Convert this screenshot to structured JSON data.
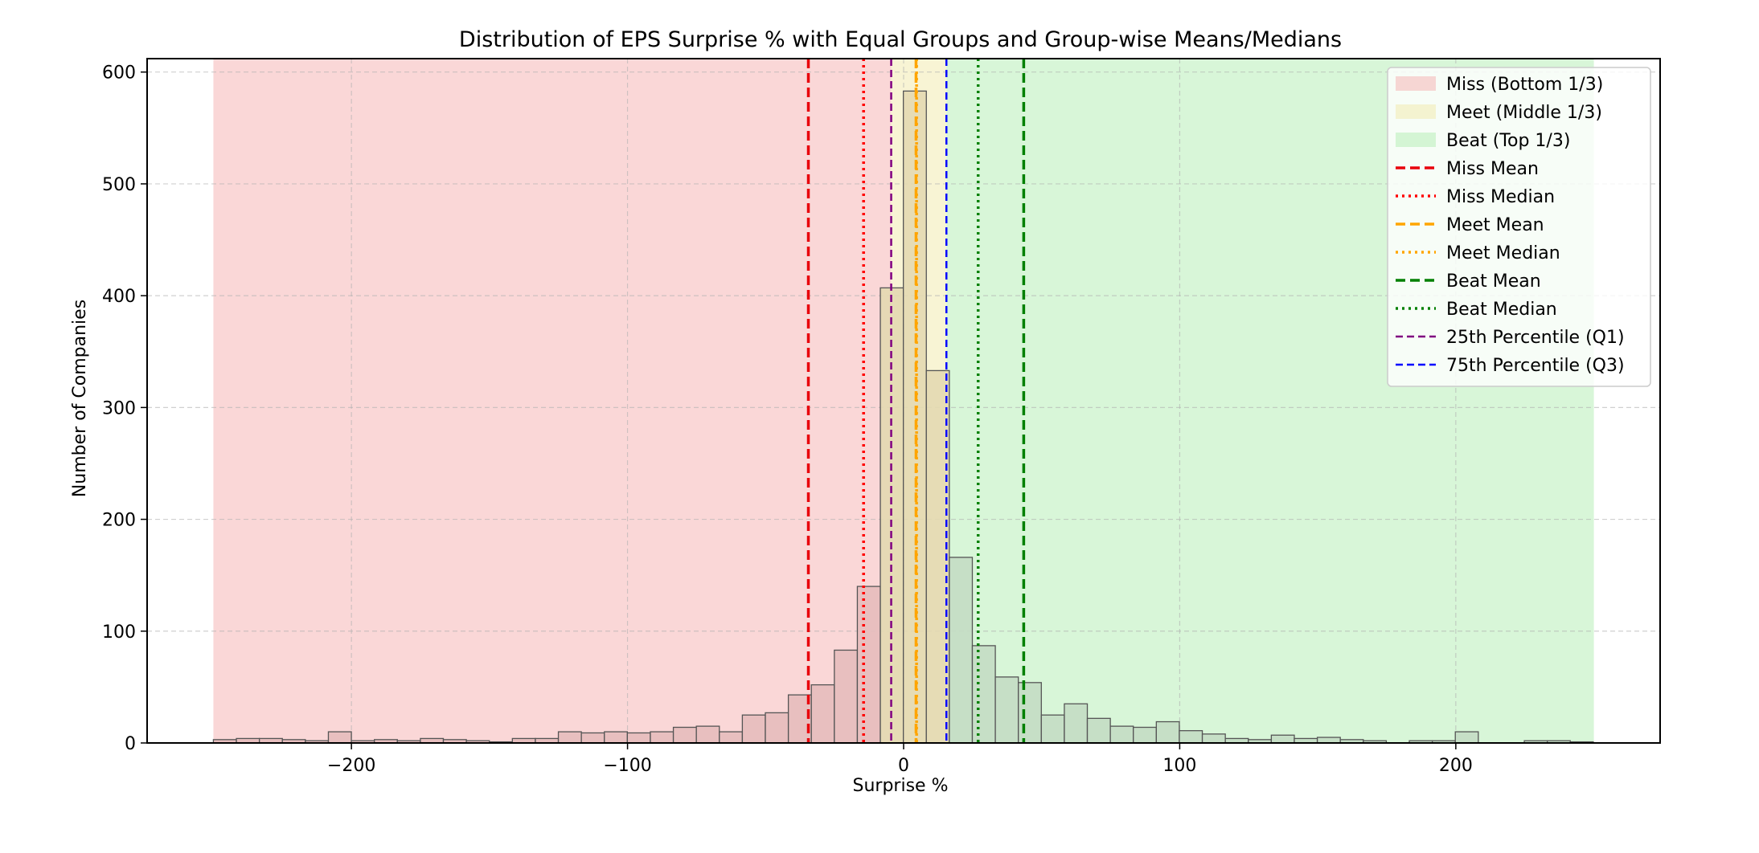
{
  "chart_data": {
    "type": "bar",
    "title": "Distribution of EPS Surprise % with Equal Groups and Group-wise Means/Medians",
    "xlabel": "Surprise %",
    "ylabel": "Number of Companies",
    "xlim": [
      -274,
      274
    ],
    "ylim": [
      0,
      612
    ],
    "xticks": [
      -200,
      -100,
      0,
      100,
      200
    ],
    "xtick_labels": [
      "−200",
      "−100",
      "0",
      "100",
      "200"
    ],
    "yticks": [
      0,
      100,
      200,
      300,
      400,
      500,
      600
    ],
    "ytick_labels": [
      "0",
      "100",
      "200",
      "300",
      "400",
      "500",
      "600"
    ],
    "grid": true,
    "legend_position": "top-right",
    "bins": {
      "start": -250,
      "width": 8.33,
      "counts": [
        3,
        4,
        4,
        3,
        2,
        10,
        2,
        3,
        2,
        4,
        3,
        2,
        1,
        4,
        4,
        10,
        9,
        10,
        9,
        10,
        14,
        15,
        10,
        25,
        27,
        43,
        52,
        83,
        140,
        407,
        583,
        333,
        166,
        87,
        59,
        54,
        25,
        35,
        22,
        15,
        14,
        19,
        11,
        8,
        4,
        3,
        7,
        4,
        5,
        3,
        2,
        0,
        2,
        2,
        10,
        0,
        0,
        2,
        2,
        1
      ]
    },
    "groups": [
      {
        "name": "Miss (Bottom 1/3)",
        "range": [
          -250,
          -4.5
        ],
        "color": "#f4a6a6"
      },
      {
        "name": "Meet (Middle 1/3)",
        "range": [
          -4.5,
          15.5
        ],
        "color": "#f0e6a0"
      },
      {
        "name": "Beat (Top 1/3)",
        "range": [
          15.5,
          250
        ],
        "color": "#a8eca8"
      }
    ],
    "bar_colors": {
      "miss": "#e6bdbd",
      "meet": "#e3d9b1",
      "beat": "#c4ddc4",
      "edge": "#555555"
    },
    "lines": [
      {
        "name": "Miss Mean",
        "x": -34.5,
        "color": "#e8000b",
        "style": "dashed"
      },
      {
        "name": "Miss Median",
        "x": -14.5,
        "color": "#ff0000",
        "style": "dotted"
      },
      {
        "name": "Meet Mean",
        "x": 4.5,
        "color": "#ffa500",
        "style": "dashed"
      },
      {
        "name": "Meet Median",
        "x": 4.7,
        "color": "#ffa500",
        "style": "dotted"
      },
      {
        "name": "Beat Mean",
        "x": 43.5,
        "color": "#008000",
        "style": "dashed"
      },
      {
        "name": "Beat Median",
        "x": 27,
        "color": "#008000",
        "style": "dotted"
      },
      {
        "name": "25th Percentile (Q1)",
        "x": -4.5,
        "color": "#800080",
        "style": "thin-dashed"
      },
      {
        "name": "75th Percentile (Q3)",
        "x": 15.5,
        "color": "#0000ff",
        "style": "thin-dashed"
      }
    ]
  }
}
